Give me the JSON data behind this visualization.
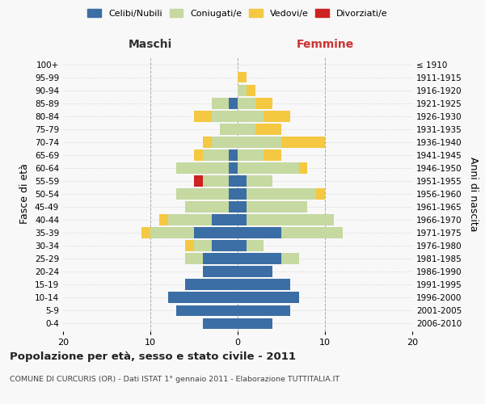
{
  "age_groups": [
    "0-4",
    "5-9",
    "10-14",
    "15-19",
    "20-24",
    "25-29",
    "30-34",
    "35-39",
    "40-44",
    "45-49",
    "50-54",
    "55-59",
    "60-64",
    "65-69",
    "70-74",
    "75-79",
    "80-84",
    "85-89",
    "90-94",
    "95-99",
    "100+"
  ],
  "birth_years": [
    "2006-2010",
    "2001-2005",
    "1996-2000",
    "1991-1995",
    "1986-1990",
    "1981-1985",
    "1976-1980",
    "1971-1975",
    "1966-1970",
    "1961-1965",
    "1956-1960",
    "1951-1955",
    "1946-1950",
    "1941-1945",
    "1936-1940",
    "1931-1935",
    "1926-1930",
    "1921-1925",
    "1916-1920",
    "1911-1915",
    "≤ 1910"
  ],
  "maschi": {
    "celibi": [
      4,
      7,
      8,
      6,
      4,
      4,
      3,
      5,
      3,
      1,
      1,
      1,
      1,
      1,
      0,
      0,
      0,
      1,
      0,
      0,
      0
    ],
    "coniugati": [
      0,
      0,
      0,
      0,
      0,
      2,
      2,
      5,
      5,
      5,
      6,
      3,
      6,
      3,
      3,
      2,
      3,
      2,
      0,
      0,
      0
    ],
    "vedovi": [
      0,
      0,
      0,
      0,
      0,
      0,
      1,
      1,
      1,
      0,
      0,
      0,
      0,
      1,
      1,
      0,
      2,
      0,
      0,
      0,
      0
    ],
    "divorziati": [
      0,
      0,
      0,
      0,
      0,
      0,
      0,
      0,
      0,
      0,
      0,
      1,
      0,
      0,
      0,
      0,
      0,
      0,
      0,
      0,
      0
    ]
  },
  "femmine": {
    "nubili": [
      4,
      6,
      7,
      6,
      4,
      5,
      1,
      5,
      1,
      1,
      1,
      1,
      0,
      0,
      0,
      0,
      0,
      0,
      0,
      0,
      0
    ],
    "coniugate": [
      0,
      0,
      0,
      0,
      0,
      2,
      2,
      7,
      10,
      7,
      8,
      3,
      7,
      3,
      5,
      2,
      3,
      2,
      1,
      0,
      0
    ],
    "vedove": [
      0,
      0,
      0,
      0,
      0,
      0,
      0,
      0,
      0,
      0,
      1,
      0,
      1,
      2,
      5,
      3,
      3,
      2,
      1,
      1,
      0
    ],
    "divorziate": [
      0,
      0,
      0,
      0,
      0,
      0,
      0,
      0,
      0,
      0,
      0,
      0,
      0,
      0,
      0,
      0,
      0,
      0,
      0,
      0,
      0
    ]
  },
  "color_celibi": "#3b6ea5",
  "color_coniugati": "#c5d9a0",
  "color_vedovi": "#f5c842",
  "color_divorziati": "#cc2222",
  "xlim": 20,
  "title": "Popolazione per età, sesso e stato civile - 2011",
  "subtitle": "COMUNE DI CURCURIS (OR) - Dati ISTAT 1° gennaio 2011 - Elaborazione TUTTITALIA.IT",
  "ylabel": "Fasce di età",
  "ylabel_right": "Anni di nascita",
  "label_maschi": "Maschi",
  "label_femmine": "Femmine",
  "legend_celibi": "Celibi/Nubili",
  "legend_coniugati": "Coniugati/e",
  "legend_vedovi": "Vedovi/e",
  "legend_divorziati": "Divorziati/e",
  "bg_color": "#f8f8f8"
}
